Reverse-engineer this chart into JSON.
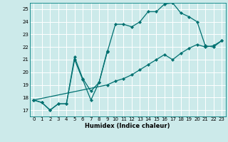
{
  "xlabel": "Humidex (Indice chaleur)",
  "ylabel": "",
  "bg_color": "#cceaea",
  "grid_color": "#ffffff",
  "line_color": "#007070",
  "xlim": [
    -0.5,
    23.5
  ],
  "ylim": [
    16.5,
    25.5
  ],
  "xticks": [
    0,
    1,
    2,
    3,
    4,
    5,
    6,
    7,
    8,
    9,
    10,
    11,
    12,
    13,
    14,
    15,
    16,
    17,
    18,
    19,
    20,
    21,
    22,
    23
  ],
  "yticks": [
    17,
    18,
    19,
    20,
    21,
    22,
    23,
    24,
    25
  ],
  "line1_x": [
    0,
    1,
    2,
    3,
    4,
    5,
    6,
    7,
    8,
    9,
    10,
    11,
    12,
    13,
    14,
    15,
    16,
    17,
    18,
    19,
    20,
    21,
    22,
    23
  ],
  "line1_y": [
    17.8,
    17.6,
    17.0,
    17.5,
    17.5,
    21.0,
    19.4,
    17.8,
    19.2,
    21.6,
    23.8,
    23.8,
    23.6,
    24.0,
    24.8,
    24.8,
    25.4,
    25.5,
    24.7,
    24.4,
    24.0,
    22.1,
    22.0,
    22.5
  ],
  "line2_x": [
    0,
    1,
    2,
    3,
    4,
    5,
    6,
    7,
    8,
    9
  ],
  "line2_y": [
    17.8,
    17.6,
    17.0,
    17.5,
    17.5,
    21.2,
    19.5,
    18.5,
    19.2,
    21.7
  ],
  "line3_x": [
    0,
    9,
    10,
    11,
    12,
    13,
    14,
    15,
    16,
    17,
    18,
    19,
    20,
    21,
    22,
    23
  ],
  "line3_y": [
    17.8,
    19.0,
    19.3,
    19.5,
    19.8,
    20.2,
    20.6,
    21.0,
    21.4,
    21.0,
    21.5,
    21.9,
    22.2,
    22.0,
    22.1,
    22.5
  ]
}
